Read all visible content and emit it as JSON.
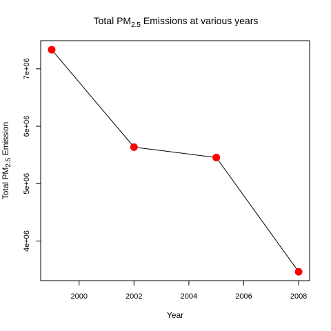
{
  "chart_data": {
    "type": "line",
    "title": {
      "prefix": "Total PM",
      "subscript": "2.5",
      "suffix": " Emissions at various years"
    },
    "xlabel": "Year",
    "ylabel": {
      "prefix": "Total PM",
      "subscript": "2.5",
      "suffix": " Emission"
    },
    "x": [
      1999,
      2002,
      2005,
      2008
    ],
    "y": [
      7332967,
      5635780,
      5454703,
      3464206
    ],
    "xlim": [
      1998.6,
      2008.4
    ],
    "ylim": [
      3310000,
      7490000
    ],
    "xticks": [
      2000,
      2002,
      2004,
      2006,
      2008
    ],
    "xtick_labels": [
      "2000",
      "2002",
      "2004",
      "2006",
      "2008"
    ],
    "yticks": [
      4000000,
      5000000,
      6000000,
      7000000
    ],
    "ytick_labels": [
      "4e+06",
      "5e+06",
      "6e+06",
      "7e+06"
    ],
    "grid": false,
    "line_color": "#000000",
    "marker_color": "#ff0000"
  }
}
